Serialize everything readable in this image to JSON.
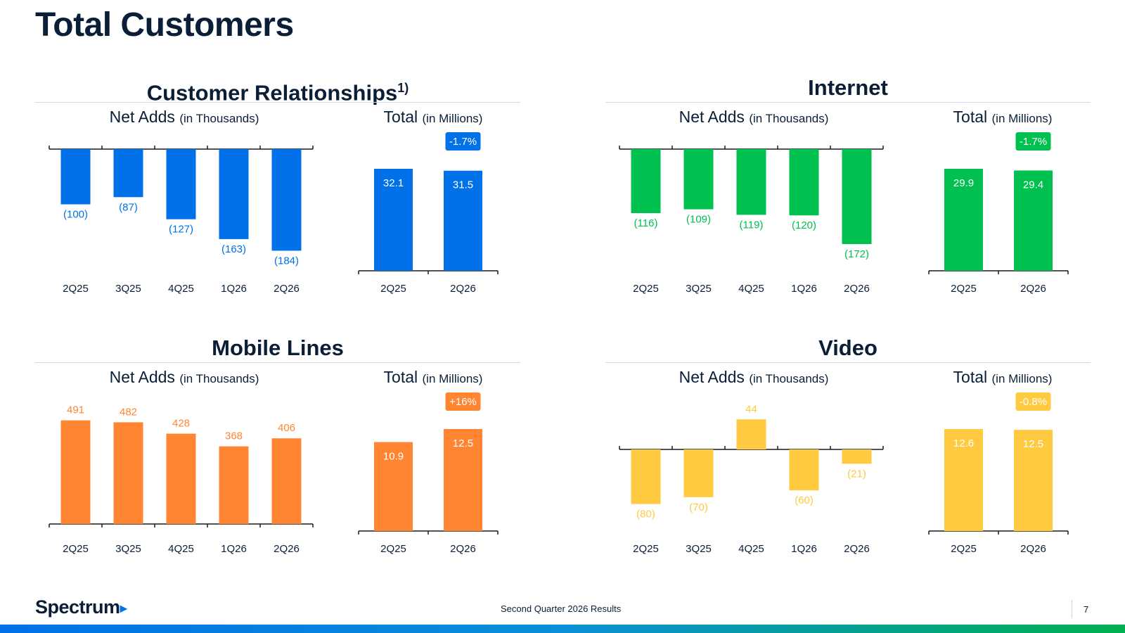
{
  "page": {
    "title": "Total Customers"
  },
  "footer": {
    "brand": "Spectrum",
    "text": "Second Quarter 2026 Results",
    "page_number": "7"
  },
  "labels": {
    "net_adds": "Net Adds",
    "net_adds_unit": "(in Thousands)",
    "total": "Total",
    "total_unit": "(in Millions)"
  },
  "colors": {
    "blue": "#0071e8",
    "green": "#00c050",
    "orange": "#ff8533",
    "yellow": "#ffc940",
    "text": "#0a1e37"
  },
  "chart_data": [
    {
      "panel": "Customer Relationships",
      "title": "Customer Relationships",
      "superscript": "1)",
      "color": "#0071e8",
      "net_adds": {
        "type": "bar",
        "categories": [
          "2Q25",
          "3Q25",
          "4Q25",
          "1Q26",
          "2Q26"
        ],
        "values": [
          -100,
          -87,
          -127,
          -163,
          -184
        ],
        "labels": [
          "(100)",
          "(87)",
          "(127)",
          "(163)",
          "(184)"
        ]
      },
      "total": {
        "type": "bar",
        "categories": [
          "2Q25",
          "2Q26"
        ],
        "values": [
          32.1,
          31.5
        ],
        "labels": [
          "32.1",
          "31.5"
        ],
        "change": "-1.7%"
      }
    },
    {
      "panel": "Internet",
      "title": "Internet",
      "color": "#00c050",
      "net_adds": {
        "type": "bar",
        "categories": [
          "2Q25",
          "3Q25",
          "4Q25",
          "1Q26",
          "2Q26"
        ],
        "values": [
          -116,
          -109,
          -119,
          -120,
          -172
        ],
        "labels": [
          "(116)",
          "(109)",
          "(119)",
          "(120)",
          "(172)"
        ]
      },
      "total": {
        "type": "bar",
        "categories": [
          "2Q25",
          "2Q26"
        ],
        "values": [
          29.9,
          29.4
        ],
        "labels": [
          "29.9",
          "29.4"
        ],
        "change": "-1.7%"
      }
    },
    {
      "panel": "Mobile Lines",
      "title": "Mobile Lines",
      "color": "#ff8533",
      "net_adds": {
        "type": "bar",
        "categories": [
          "2Q25",
          "3Q25",
          "4Q25",
          "1Q26",
          "2Q26"
        ],
        "values": [
          491,
          482,
          428,
          368,
          406
        ],
        "labels": [
          "491",
          "482",
          "428",
          "368",
          "406"
        ]
      },
      "total": {
        "type": "bar",
        "categories": [
          "2Q25",
          "2Q26"
        ],
        "values": [
          10.9,
          12.5
        ],
        "labels": [
          "10.9",
          "12.5"
        ],
        "change": "+16%"
      }
    },
    {
      "panel": "Video",
      "title": "Video",
      "color": "#ffc940",
      "net_adds": {
        "type": "bar",
        "categories": [
          "2Q25",
          "3Q25",
          "4Q25",
          "1Q26",
          "2Q26"
        ],
        "values": [
          -80,
          -70,
          44,
          -60,
          -21
        ],
        "labels": [
          "(80)",
          "(70)",
          "44",
          "(60)",
          "(21)"
        ]
      },
      "total": {
        "type": "bar",
        "categories": [
          "2Q25",
          "2Q26"
        ],
        "values": [
          12.6,
          12.5
        ],
        "labels": [
          "12.6",
          "12.5"
        ],
        "change": "-0.8%"
      }
    }
  ]
}
